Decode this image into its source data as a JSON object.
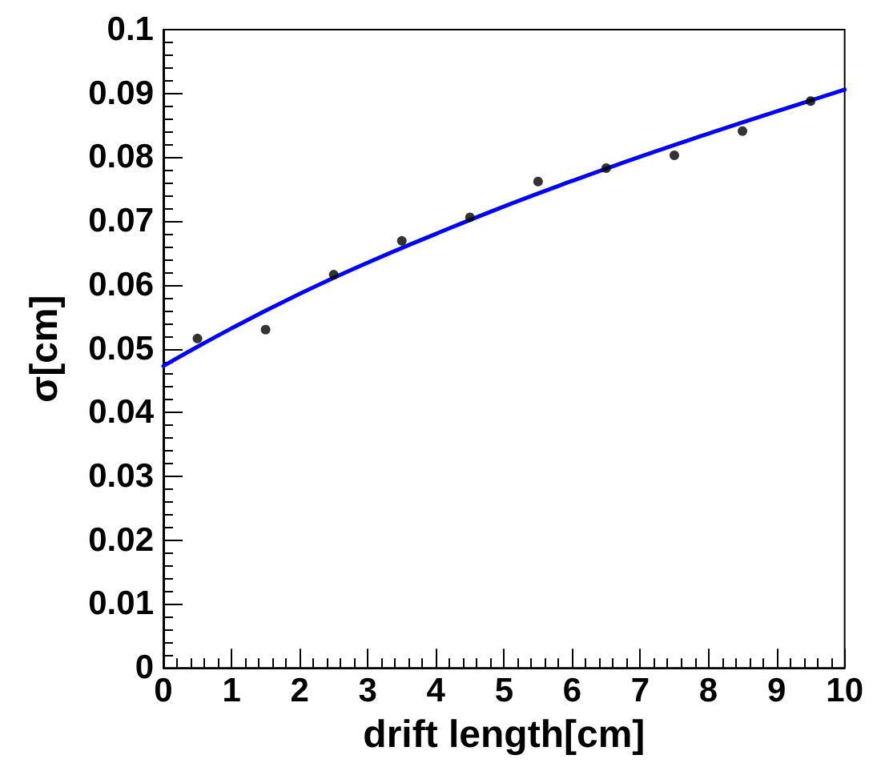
{
  "chart_data": {
    "type": "scatter",
    "xlabel": "drift length[cm]",
    "ylabel": "σ[cm]",
    "xlim": [
      0,
      10
    ],
    "ylim": [
      0,
      0.1
    ],
    "xticks": [
      0,
      1,
      2,
      3,
      4,
      5,
      6,
      7,
      8,
      9,
      10
    ],
    "yticks": [
      0,
      0.01,
      0.02,
      0.03,
      0.04,
      0.05,
      0.06,
      0.07,
      0.08,
      0.09,
      0.1
    ],
    "grid": false,
    "series": [
      {
        "color": "#000000",
        "marker": "circle",
        "x": [
          0.5,
          1.5,
          2.5,
          3.5,
          4.5,
          5.5,
          6.5,
          7.5,
          8.5,
          9.5
        ],
        "values": [
          0.0516,
          0.053,
          0.0616,
          0.0669,
          0.0706,
          0.0762,
          0.0783,
          0.0803,
          0.0841,
          0.0888
        ]
      },
      {
        "type": "line",
        "color": "#0000ff",
        "line_style": "solid",
        "marker": "none",
        "x": [
          0,
          1,
          2,
          3,
          4,
          5,
          6,
          7,
          8,
          9,
          10
        ],
        "values": [
          0.0473,
          0.0532,
          0.0586,
          0.0635,
          0.068,
          0.0723,
          0.0763,
          0.0801,
          0.0837,
          0.0872,
          0.0906
        ]
      }
    ]
  }
}
